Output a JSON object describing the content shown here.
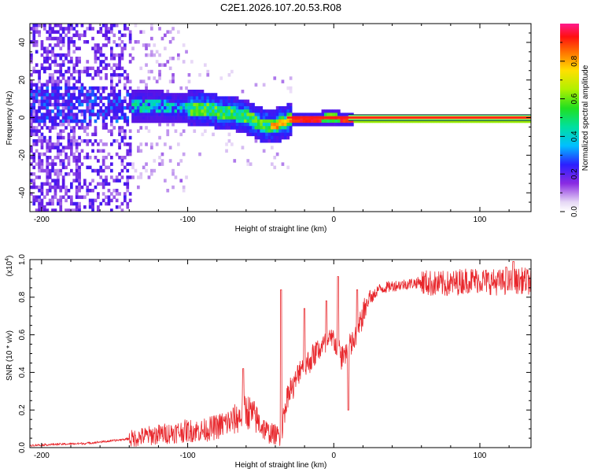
{
  "title": "C2E1.2026.107.20.53.R08",
  "chart_data": [
    {
      "type": "heatmap",
      "name": "spectrogram",
      "xlabel": "Height of straight line (km)",
      "ylabel": "Frequency (Hz)",
      "xlim": [
        -208,
        135
      ],
      "ylim": [
        -50,
        50
      ],
      "xticks": [
        -200,
        -100,
        0,
        100
      ],
      "yticks": [
        -40,
        -20,
        0,
        20,
        40
      ],
      "colorbar": {
        "label": "Normalized spectral amplitude",
        "range": [
          0,
          1
        ],
        "ticks": [
          0.0,
          0.2,
          0.4,
          0.6,
          0.8
        ],
        "tick_labels": [
          "0.0",
          "0.2",
          "0.4",
          "0.6",
          "0.8"
        ]
      },
      "ridge": {
        "x": [
          -190,
          -160,
          -140,
          -120,
          -105,
          -100,
          -90,
          -80,
          -70,
          -60,
          -50,
          -45,
          -40,
          -35,
          -30,
          -20,
          -10,
          -5,
          0,
          5,
          10,
          40,
          80,
          135
        ],
        "freq": [
          8,
          8,
          7,
          7,
          6,
          6,
          6,
          4,
          3,
          1,
          -3,
          -3,
          -3,
          -2,
          0,
          0,
          0,
          1,
          1,
          0,
          0,
          0,
          0,
          0
        ]
      }
    },
    {
      "type": "line",
      "name": "snr",
      "xlabel": "Height of straight line (km)",
      "ylabel": "SNR (10 * v/v)",
      "scale_label": "(x10",
      "scale_exp": "4",
      "scale_close": ")",
      "xlim": [
        -208,
        135
      ],
      "ylim": [
        0,
        1.0
      ],
      "xticks": [
        -200,
        -100,
        0,
        100
      ],
      "yticks": [
        0.0,
        0.2,
        0.4,
        0.6,
        0.8,
        1.0
      ],
      "ytick_labels": [
        "0.0",
        "0.2",
        "0.4",
        "0.6",
        "0.8",
        "1.0"
      ],
      "series": [
        {
          "name": "SNR",
          "color": "#e8262b",
          "x": [
            -208,
            -190,
            -170,
            -150,
            -140,
            -130,
            -120,
            -110,
            -100,
            -90,
            -80,
            -70,
            -65,
            -60,
            -55,
            -50,
            -45,
            -40,
            -37,
            -35,
            -33,
            -30,
            -28,
            -25,
            -22,
            -20,
            -15,
            -10,
            -5,
            0,
            5,
            10,
            15,
            20,
            25,
            30,
            40,
            50,
            60,
            70,
            80,
            90,
            100,
            110,
            120,
            130,
            135
          ],
          "y": [
            0.01,
            0.015,
            0.02,
            0.035,
            0.045,
            0.06,
            0.07,
            0.08,
            0.09,
            0.09,
            0.11,
            0.14,
            0.16,
            0.2,
            0.17,
            0.12,
            0.08,
            0.07,
            0.06,
            0.1,
            0.2,
            0.3,
            0.28,
            0.35,
            0.42,
            0.4,
            0.45,
            0.5,
            0.52,
            0.55,
            0.45,
            0.5,
            0.55,
            0.68,
            0.78,
            0.84,
            0.86,
            0.87,
            0.88,
            0.87,
            0.87,
            0.89,
            0.89,
            0.88,
            0.88,
            0.89,
            0.88
          ]
        }
      ]
    }
  ]
}
